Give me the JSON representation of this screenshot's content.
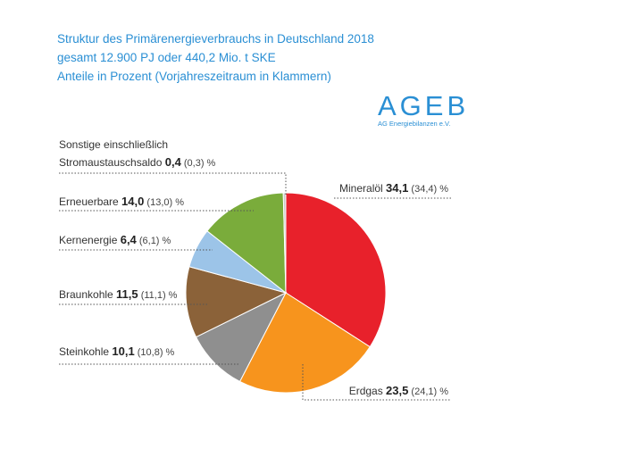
{
  "title_lines": [
    "Struktur des Primärenergieverbrauchs in Deutschland 2018",
    "gesamt 12.900 PJ oder 440,2 Mio. t SKE",
    "Anteile in Prozent (Vorjahreszeitraum in Klammern)"
  ],
  "logo": {
    "text": "AGEB",
    "subtext": "AG Energiebilanzen e.V."
  },
  "chart_data": {
    "type": "pie",
    "title": "Struktur des Primärenergieverbrauchs in Deutschland 2018",
    "subtitle": "gesamt 12.900 PJ oder 440,2 Mio. t SKE",
    "unit": "%",
    "slices": [
      {
        "label": "Mineralöl",
        "value": 34.1,
        "value_text": "34,1",
        "previous_text": "(34,4)",
        "color": "#e8212b"
      },
      {
        "label": "Erdgas",
        "value": 23.5,
        "value_text": "23,5",
        "previous_text": "(24,1)",
        "color": "#f7941d"
      },
      {
        "label": "Steinkohle",
        "value": 10.1,
        "value_text": "10,1",
        "previous_text": "(10,8)",
        "color": "#8f8f8f"
      },
      {
        "label": "Braunkohle",
        "value": 11.5,
        "value_text": "11,5",
        "previous_text": "(11,1)",
        "color": "#8b6239"
      },
      {
        "label": "Kernenergie",
        "value": 6.4,
        "value_text": "6,4",
        "previous_text": "(6,1)",
        "color": "#9cc4e8"
      },
      {
        "label": "Erneuerbare",
        "value": 14.0,
        "value_text": "14,0",
        "previous_text": "(13,0)",
        "color": "#7aac3b"
      },
      {
        "label": "Sonstige einschließlich Stromaustauschsaldo",
        "label_line1": "Sonstige einschließlich",
        "label_line2": "Stromaustauschsaldo",
        "value": 0.4,
        "value_text": "0,4",
        "previous_text": "(0,3)",
        "color": "#c8c8c8"
      }
    ]
  }
}
